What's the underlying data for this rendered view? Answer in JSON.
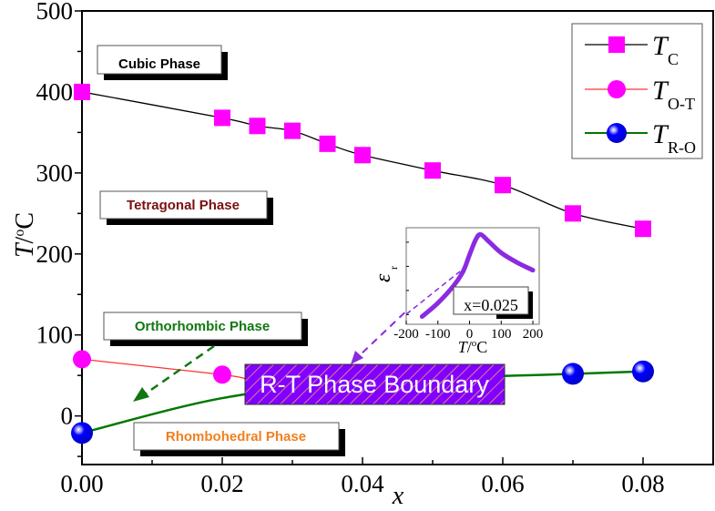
{
  "chart_data": {
    "type": "line",
    "title": "",
    "xlabel": "x",
    "ylabel": "T/°C",
    "xlim": [
      0,
      0.09
    ],
    "ylim": [
      -60,
      500
    ],
    "x_ticks": [
      "0.00",
      "0.02",
      "0.04",
      "0.06",
      "0.08"
    ],
    "x_tick_values": [
      0,
      0.02,
      0.04,
      0.06,
      0.08
    ],
    "y_ticks": [
      "0",
      "100",
      "200",
      "300",
      "400",
      "500"
    ],
    "y_tick_values": [
      0,
      100,
      200,
      300,
      400,
      500
    ],
    "legend_position": "top-right",
    "series": [
      {
        "name": "T_C",
        "label_main": "T",
        "label_sub": "C",
        "marker": "square",
        "marker_color": "#ff00ff",
        "line_color": "#000000",
        "x": [
          0,
          0.02,
          0.025,
          0.03,
          0.035,
          0.04,
          0.05,
          0.06,
          0.07,
          0.08
        ],
        "y": [
          400,
          368,
          358,
          352,
          336,
          322,
          303,
          285,
          250,
          231
        ]
      },
      {
        "name": "T_O-T",
        "label_main": "T",
        "label_sub": "O-T",
        "marker": "circle",
        "marker_color": "#ff00ff",
        "line_color": "#ff3333",
        "x": [
          0,
          0.02
        ],
        "y": [
          70,
          51
        ]
      },
      {
        "name": "T_R-O",
        "label_main": "T",
        "label_sub": "R-O",
        "marker": "sphere",
        "marker_color": "#0000ff",
        "line_color": "#007700",
        "x": [
          0,
          0.07,
          0.08
        ],
        "y": [
          -21,
          52,
          55
        ]
      }
    ],
    "annotations": {
      "cubic": "Cubic Phase",
      "tetragonal": "Tetragonal Phase",
      "orthorhombic": "Orthorhombic Phase",
      "rhombohedral": "Rhombohedral Phase",
      "boundary": "R-T Phase Boundary"
    },
    "annotation_colors": {
      "cubic": "#000000",
      "tetragonal": "#7a1010",
      "orthorhombic": "#117711",
      "rhombohedral": "#f08020",
      "boundary_fill": "#8000ff",
      "boundary_hatch": "#ff9966"
    },
    "inset": {
      "type": "line",
      "xlabel": "T/°C",
      "ylabel": "ε_r",
      "xlim": [
        -200,
        220
      ],
      "x_ticks": [
        "-200",
        "-100",
        "0",
        "100",
        "200"
      ],
      "x_tick_values": [
        -200,
        -100,
        0,
        100,
        200
      ],
      "label": "x=0.025",
      "color": "#8a2be2",
      "x": [
        -150,
        -100,
        -50,
        -20,
        0,
        20,
        35,
        60,
        100,
        150,
        200
      ],
      "y": [
        0.08,
        0.22,
        0.4,
        0.55,
        0.72,
        0.88,
        0.93,
        0.86,
        0.74,
        0.64,
        0.56
      ]
    }
  }
}
